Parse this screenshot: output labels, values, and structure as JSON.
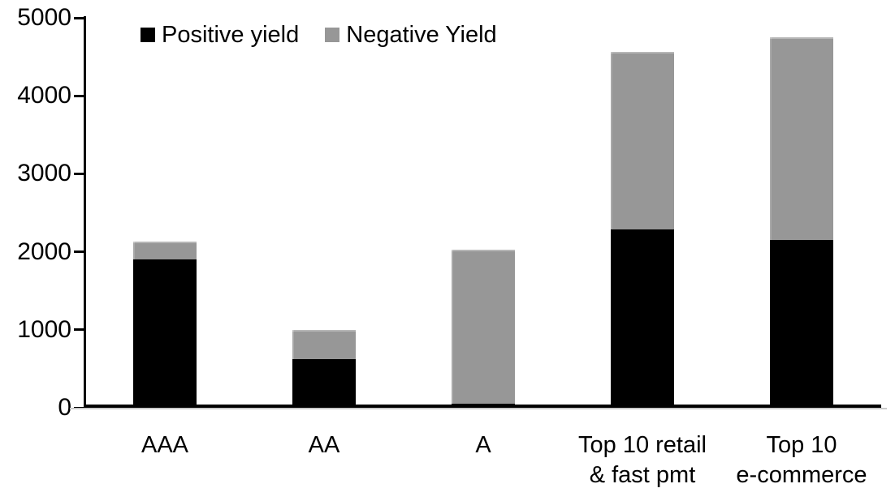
{
  "chart_data": {
    "type": "bar",
    "stacked": true,
    "title": "",
    "xlabel": "",
    "ylabel": "",
    "categories": [
      "AAA",
      "AA",
      "A",
      "Top 10 retail\n& fast pmt",
      "Top 10\ne-commerce"
    ],
    "series": [
      {
        "name": "Positive yield",
        "color": "#000000",
        "values": [
          1900,
          620,
          50,
          2290,
          2150
        ]
      },
      {
        "name": "Negative Yield",
        "color": "#979797",
        "values": [
          230,
          380,
          1980,
          2270,
          2600
        ]
      }
    ],
    "totals": [
      2130,
      1000,
      2030,
      4560,
      4750
    ],
    "ylim": [
      0,
      5000
    ],
    "yticks": [
      0,
      1000,
      2000,
      3000,
      4000,
      5000
    ],
    "grid": false,
    "legend_position": "top-left",
    "colors": {
      "positive": "#000000",
      "negative": "#979797",
      "axis": "#000000",
      "background": "#ffffff"
    }
  }
}
